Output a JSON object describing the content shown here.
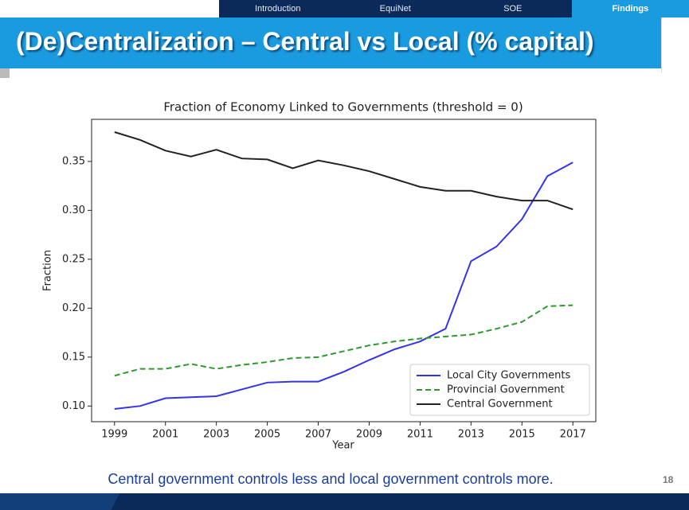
{
  "nav": [
    "Introduction",
    "EquiNet",
    "SOE",
    "Findings"
  ],
  "slide_title": "(De)Centralization – Central vs Local (% capital)",
  "caption": "Central government controls less and local government controls more.",
  "page_number": "18",
  "chart_data": {
    "type": "line",
    "title": "Fraction of Economy Linked to Governments (threshold = 0)",
    "x_label": "Year",
    "y_label": "Fraction",
    "x": [
      1999,
      2000,
      2001,
      2002,
      2003,
      2004,
      2005,
      2006,
      2007,
      2008,
      2009,
      2010,
      2011,
      2012,
      2013,
      2014,
      2015,
      2016,
      2017
    ],
    "series": [
      {
        "name": "Local City Governments",
        "color": "#3333ee",
        "linestyle": "solid",
        "values": [
          0.097,
          0.1,
          0.108,
          0.109,
          0.11,
          0.117,
          0.124,
          0.125,
          0.125,
          0.135,
          0.147,
          0.158,
          0.166,
          0.179,
          0.248,
          0.263,
          0.291,
          0.335,
          0.349
        ]
      },
      {
        "name": "Provincial Government",
        "color": "#2e9a2e",
        "linestyle": "dashed",
        "values": [
          0.131,
          0.138,
          0.138,
          0.143,
          0.138,
          0.142,
          0.145,
          0.149,
          0.15,
          0.156,
          0.162,
          0.166,
          0.169,
          0.171,
          0.173,
          0.179,
          0.186,
          0.202,
          0.203
        ]
      },
      {
        "name": "Central Government",
        "color": "#222222",
        "linestyle": "solid",
        "values": [
          0.38,
          0.372,
          0.361,
          0.355,
          0.362,
          0.353,
          0.352,
          0.343,
          0.351,
          0.346,
          0.34,
          0.332,
          0.324,
          0.32,
          0.32,
          0.314,
          0.31,
          0.31,
          0.301
        ]
      }
    ],
    "xlim": [
      1998.1,
      2017.9
    ],
    "xticks": [
      1999,
      2001,
      2003,
      2005,
      2007,
      2009,
      2011,
      2013,
      2015,
      2017
    ],
    "ylim": [
      0.084,
      0.393
    ],
    "yticks": [
      {
        "value": 0.1,
        "label": "0.10"
      },
      0.15,
      {
        "value": 0.2,
        "label": "0.20"
      },
      0.25,
      {
        "value": 0.3,
        "label": "0.30"
      },
      0.35
    ],
    "legend": "lower right"
  }
}
